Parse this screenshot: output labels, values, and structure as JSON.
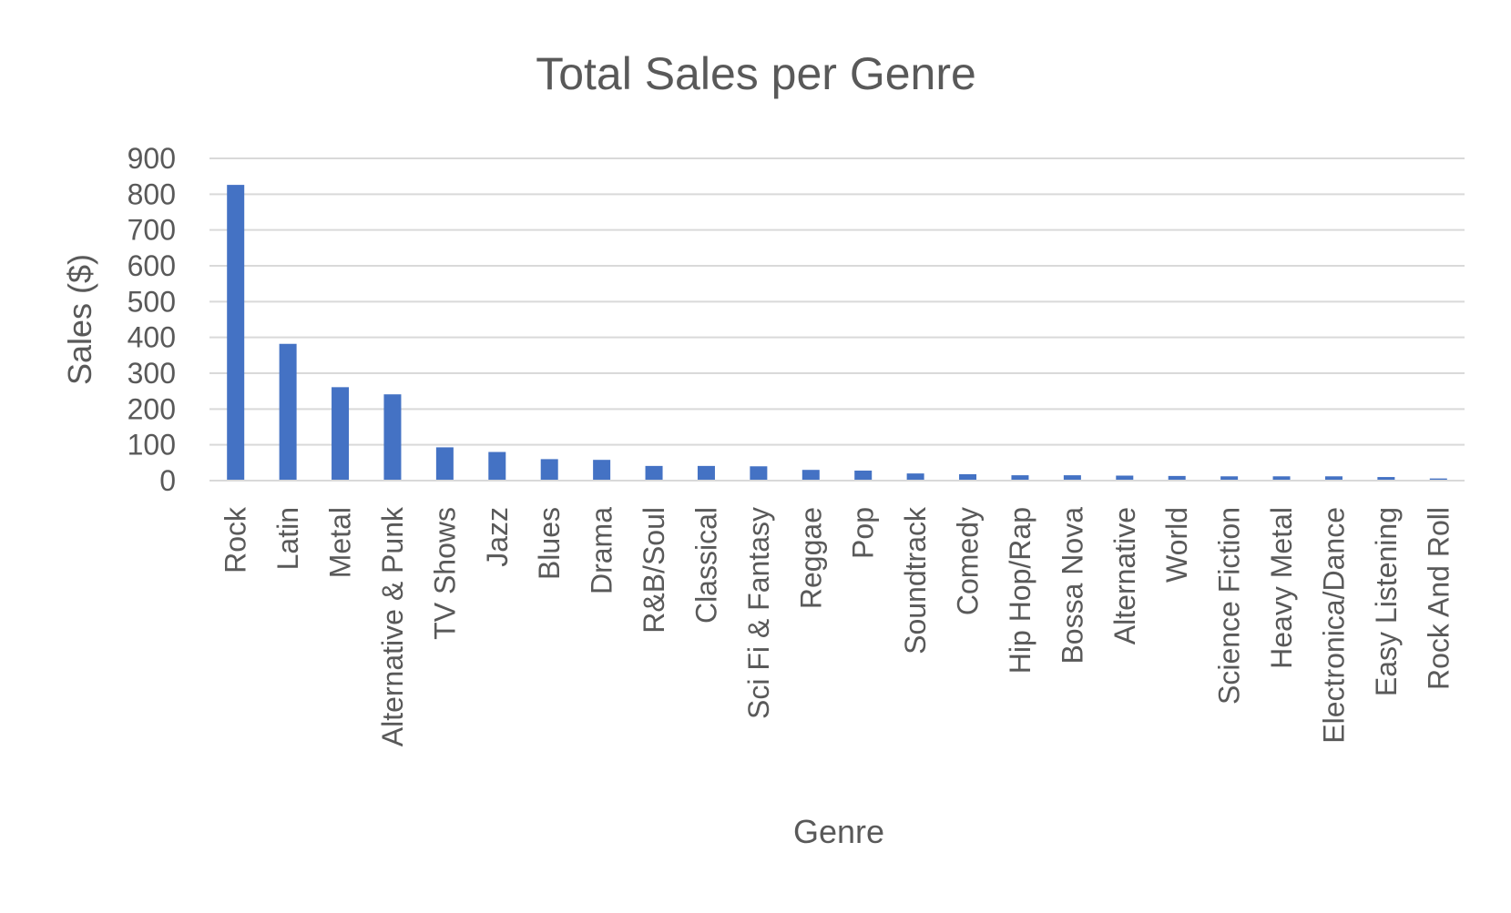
{
  "chart_data": {
    "type": "bar",
    "title": "Total Sales per Genre",
    "xlabel": "Genre",
    "ylabel": "Sales ($)",
    "ylim": [
      0,
      900
    ],
    "yticks": [
      "0",
      "100",
      "200",
      "300",
      "400",
      "500",
      "600",
      "700",
      "800",
      "900"
    ],
    "grid": true,
    "legend": "none",
    "bar_color": "#4472C4",
    "gridline_color": "#D9D9D9",
    "text_color": "#595959",
    "categories": [
      "Rock",
      "Latin",
      "Metal",
      "Alternative & Punk",
      "TV Shows",
      "Jazz",
      "Blues",
      "Drama",
      "R&B/Soul",
      "Classical",
      "Sci Fi & Fantasy",
      "Reggae",
      "Pop",
      "Soundtrack",
      "Comedy",
      "Hip Hop/Rap",
      "Bossa Nova",
      "Alternative",
      "World",
      "Science Fiction",
      "Heavy Metal",
      "Electronica/Dance",
      "Easy Listening",
      "Rock And Roll"
    ],
    "values": [
      826,
      382,
      261,
      241,
      93,
      80,
      60,
      58,
      41,
      41,
      40,
      30,
      28,
      20,
      18,
      15,
      15,
      14,
      13,
      12,
      12,
      12,
      10,
      6
    ]
  }
}
